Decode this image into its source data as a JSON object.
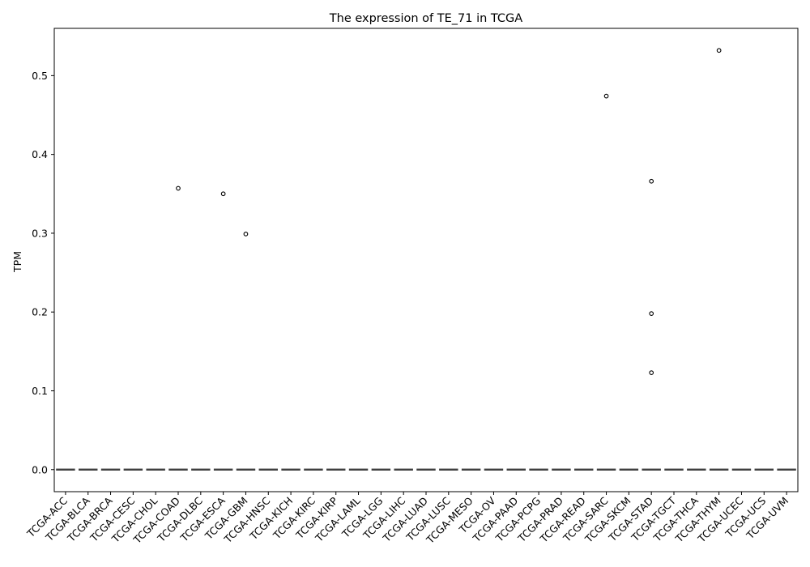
{
  "chart_data": {
    "type": "box",
    "title": "The expression of TE_71 in TCGA",
    "xlabel": "",
    "ylabel": "TPM",
    "ylim": [
      -0.028,
      0.56
    ],
    "yticks": [
      0.0,
      0.1,
      0.2,
      0.3,
      0.4,
      0.5
    ],
    "ytick_labels": [
      "0.0",
      "0.1",
      "0.2",
      "0.3",
      "0.4",
      "0.5"
    ],
    "grid": false,
    "box_color": "#4c72b0",
    "categories": [
      "TCGA-ACC",
      "TCGA-BLCA",
      "TCGA-BRCA",
      "TCGA-CESC",
      "TCGA-CHOL",
      "TCGA-COAD",
      "TCGA-DLBC",
      "TCGA-ESCA",
      "TCGA-GBM",
      "TCGA-HNSC",
      "TCGA-KICH",
      "TCGA-KIRC",
      "TCGA-KIRP",
      "TCGA-LAML",
      "TCGA-LGG",
      "TCGA-LIHC",
      "TCGA-LUAD",
      "TCGA-LUSC",
      "TCGA-MESO",
      "TCGA-OV",
      "TCGA-PAAD",
      "TCGA-PCPG",
      "TCGA-PRAD",
      "TCGA-READ",
      "TCGA-SARC",
      "TCGA-SKCM",
      "TCGA-STAD",
      "TCGA-TGCT",
      "TCGA-THCA",
      "TCGA-THYM",
      "TCGA-UCEC",
      "TCGA-UCS",
      "TCGA-UVM"
    ],
    "box_stats": {
      "q1": 0.0,
      "median": 0.0,
      "q3": 0.0,
      "whisker_low": 0.0,
      "whisker_high": 0.0
    },
    "outliers": [
      {
        "category": "TCGA-COAD",
        "value": 0.357
      },
      {
        "category": "TCGA-ESCA",
        "value": 0.35
      },
      {
        "category": "TCGA-GBM",
        "value": 0.299
      },
      {
        "category": "TCGA-SARC",
        "value": 0.474
      },
      {
        "category": "TCGA-STAD",
        "value": 0.366
      },
      {
        "category": "TCGA-STAD",
        "value": 0.198
      },
      {
        "category": "TCGA-STAD",
        "value": 0.123
      },
      {
        "category": "TCGA-THYM",
        "value": 0.532
      }
    ]
  }
}
